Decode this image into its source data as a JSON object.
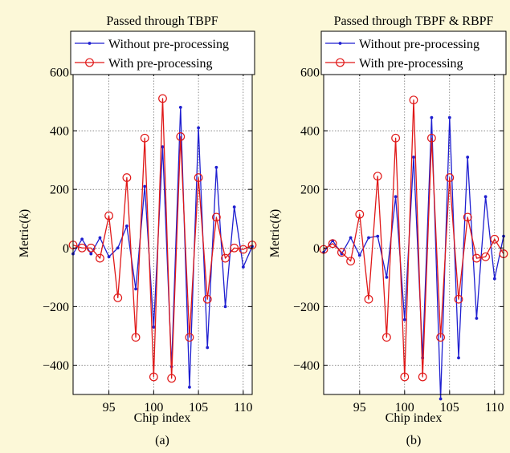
{
  "background": "#fcf8d8",
  "colors": {
    "without": "#1f1fd0",
    "with": "#e01818"
  },
  "chart_data": [
    {
      "type": "line",
      "caption": "(a)",
      "title": "Passed through TBPF",
      "xlabel": "Chip index",
      "ylabel_prefix": "Metric(",
      "ylabel_var": "k",
      "ylabel_suffix": ")",
      "xlim": [
        91,
        111
      ],
      "ylim": [
        -500,
        600
      ],
      "xticks": [
        95,
        100,
        105,
        110
      ],
      "yticks": [
        -400,
        -200,
        0,
        200,
        400,
        600
      ],
      "grid": true,
      "legend_position": "top",
      "x": [
        91,
        92,
        93,
        94,
        95,
        96,
        97,
        98,
        99,
        100,
        101,
        102,
        103,
        104,
        105,
        106,
        107,
        108,
        109,
        110,
        111
      ],
      "series": [
        {
          "name": "Without pre-processing",
          "color": "#1f1fd0",
          "marker": "dot",
          "values": [
            -20,
            30,
            -20,
            35,
            -30,
            0,
            75,
            -140,
            210,
            -270,
            345,
            -405,
            480,
            -475,
            410,
            -340,
            275,
            -200,
            140,
            -65,
            5
          ]
        },
        {
          "name": "With pre-processing",
          "color": "#e01818",
          "marker": "circle",
          "values": [
            10,
            0,
            0,
            -35,
            110,
            -170,
            240,
            -305,
            375,
            -440,
            510,
            -445,
            380,
            -305,
            240,
            -175,
            105,
            -35,
            0,
            -5,
            10
          ]
        }
      ]
    },
    {
      "type": "line",
      "caption": "(b)",
      "title": "Passed through TBPF & RBPF",
      "xlabel": "Chip index",
      "ylabel_prefix": "Metric(",
      "ylabel_var": "k",
      "ylabel_suffix": ")",
      "xlim": [
        91,
        111
      ],
      "ylim": [
        -500,
        600
      ],
      "xticks": [
        95,
        100,
        105,
        110
      ],
      "yticks": [
        -400,
        -200,
        0,
        200,
        400,
        600
      ],
      "grid": true,
      "legend_position": "top",
      "x": [
        91,
        92,
        93,
        94,
        95,
        96,
        97,
        98,
        99,
        100,
        101,
        102,
        103,
        104,
        105,
        106,
        107,
        108,
        109,
        110,
        111
      ],
      "series": [
        {
          "name": "Without pre-processing",
          "color": "#1f1fd0",
          "marker": "dot",
          "values": [
            -15,
            25,
            -20,
            35,
            -25,
            35,
            40,
            -100,
            175,
            -245,
            310,
            -375,
            445,
            -515,
            445,
            -375,
            310,
            -240,
            175,
            -105,
            40
          ]
        },
        {
          "name": "With pre-processing",
          "color": "#e01818",
          "marker": "circle",
          "values": [
            -5,
            15,
            -15,
            -45,
            115,
            -175,
            245,
            -305,
            375,
            -440,
            505,
            -440,
            375,
            -305,
            240,
            -175,
            105,
            -35,
            -30,
            30,
            -20
          ]
        }
      ]
    }
  ]
}
